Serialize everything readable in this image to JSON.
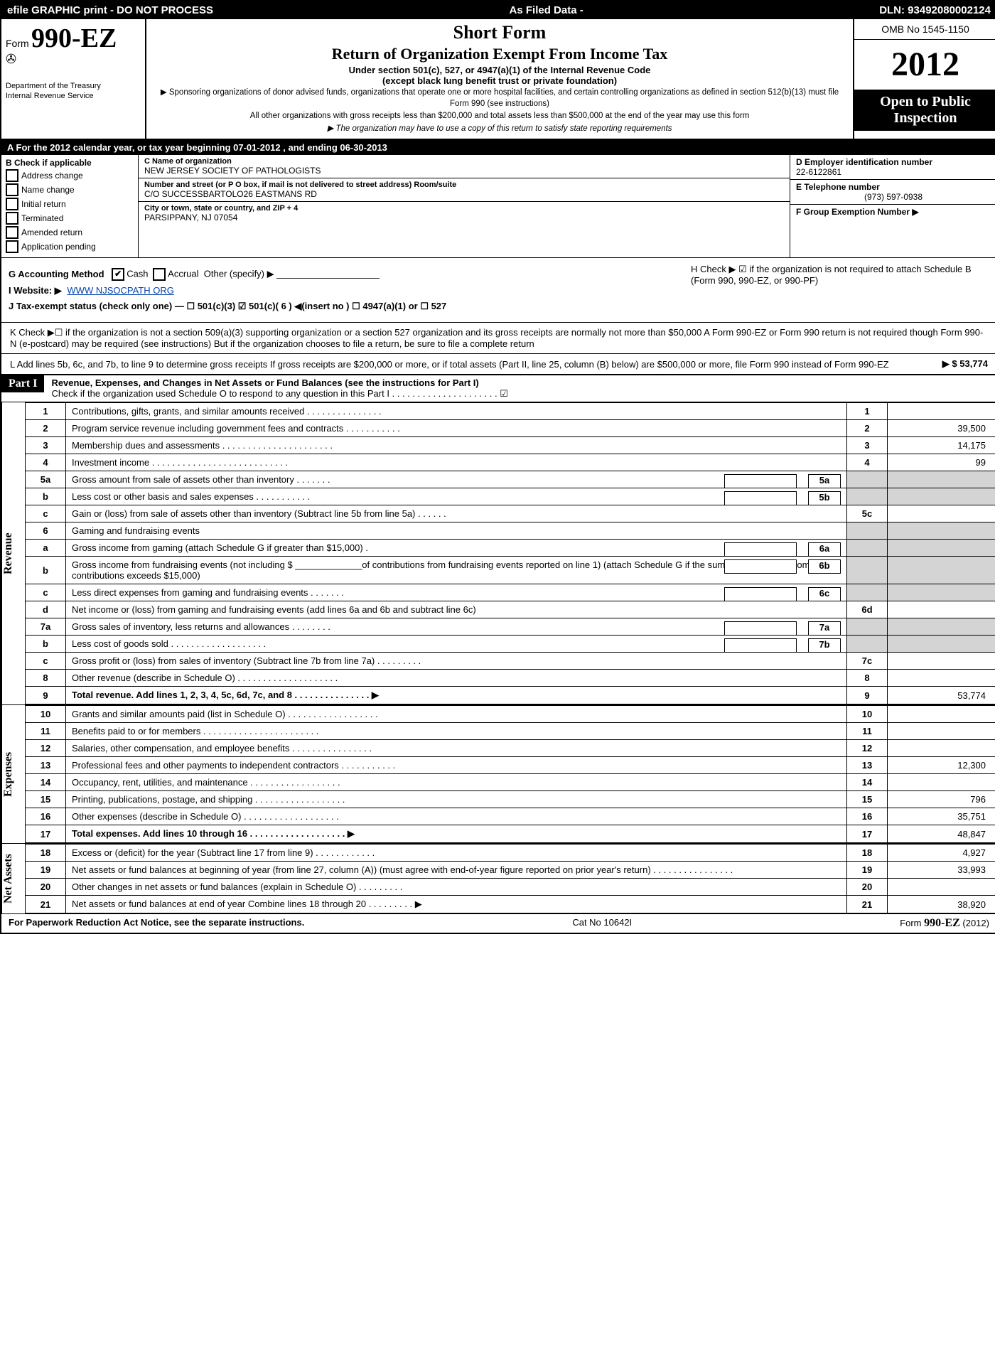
{
  "top_bar": {
    "left": "efile GRAPHIC print - DO NOT PROCESS",
    "mid": "As Filed Data -",
    "right": "DLN: 93492080002124"
  },
  "header": {
    "form_prefix": "Form",
    "form_number": "990-EZ",
    "treasury_1": "Department of the Treasury",
    "treasury_2": "Internal Revenue Service",
    "title_short": "Short Form",
    "title_main": "Return of Organization Exempt From Income Tax",
    "subtitle_1": "Under section 501(c), 527, or 4947(a)(1) of the Internal Revenue Code",
    "subtitle_2": "(except black lung benefit trust or private foundation)",
    "note_1": "▶ Sponsoring organizations of donor advised funds, organizations that operate one or more hospital facilities, and certain controlling organizations as defined in section 512(b)(13) must file Form 990 (see instructions)",
    "note_2": "All other organizations with gross receipts less than $200,000 and total assets less than $500,000 at the end of the year may use this form",
    "note_3": "▶ The organization may have to use a copy of this return to satisfy state reporting requirements",
    "omb": "OMB No 1545-1150",
    "year": "2012",
    "open_public": "Open to Public Inspection"
  },
  "row_a": "A  For the 2012 calendar year, or tax year beginning 07-01-2012            , and ending 06-30-2013",
  "section_b": {
    "label": "B  Check if applicable",
    "items": [
      "Address change",
      "Name change",
      "Initial return",
      "Terminated",
      "Amended return",
      "Application pending"
    ]
  },
  "section_c": {
    "name_lbl": "C Name of organization",
    "name": "NEW JERSEY SOCIETY OF PATHOLOGISTS",
    "addr_lbl": "Number and street (or P  O  box, if mail is not delivered to street address) Room/suite",
    "addr": "C/O SUCCESSBARTOLO26 EASTMANS RD",
    "city_lbl": "City or town, state or country, and ZIP + 4",
    "city": "PARSIPPANY, NJ  07054"
  },
  "section_d": {
    "ein_lbl": "D Employer identification number",
    "ein": "22-6122861",
    "phone_lbl": "E Telephone number",
    "phone": "(973) 597-0938",
    "group_lbl": "F Group Exemption Number   ▶"
  },
  "ghij": {
    "g": "G Accounting Method",
    "g_opts": [
      "Cash",
      "Accrual",
      "Other (specify) ▶"
    ],
    "h": "H  Check ▶  ☑  if the organization is not required to attach Schedule B (Form 990, 990-EZ, or 990-PF)",
    "i": "I Website: ▶",
    "i_url": "WWW NJSOCPATH ORG",
    "j": "J Tax-exempt status (check only one) —  ☐ 501(c)(3)  ☑ 501(c)( 6 ) ◀(insert no )  ☐ 4947(a)(1) or  ☐ 527"
  },
  "k_note": "K Check ▶☐  if the organization is not a section 509(a)(3) supporting organization or a section 527 organization and its gross receipts are normally not more than $50,000  A Form 990-EZ or Form 990 return is not required though Form 990-N (e-postcard) may be required (see instructions)  But if the organization chooses to file a return, be sure to file a complete return",
  "l_note": "L Add lines 5b, 6c, and 7b, to line 9 to determine gross receipts  If gross receipts are $200,000 or more, or if total assets (Part II, line 25, column (B) below) are $500,000 or more, file Form 990 instead of Form 990-EZ",
  "l_amount": "▶ $ 53,774",
  "part1": {
    "label": "Part I",
    "title": "Revenue, Expenses, and Changes in Net Assets or Fund Balances (see the instructions for Part I)",
    "sub": "Check if the organization used Schedule O to respond to any question in this Part I  .  .  .  .  .  .  .  .  .  .  .  .  .  .  .  .  .  .  .  .  .  ☑"
  },
  "revenue_rows": [
    {
      "n": "1",
      "desc": "Contributions, gifts, grants, and similar amounts received    .  .  .  .  .  .  .  .  .  .  .  .  .  .  .",
      "code": "1",
      "val": ""
    },
    {
      "n": "2",
      "desc": "Program service revenue including government fees and contracts    .  .  .  .  .  .  .  .  .  .  .",
      "code": "2",
      "val": "39,500"
    },
    {
      "n": "3",
      "desc": "Membership dues and assessments    .  .  .  .  .  .  .  .  .  .  .  .  .  .  .  .  .  .  .  .  .  .",
      "code": "3",
      "val": "14,175"
    },
    {
      "n": "4",
      "desc": "Investment income    .  .  .  .  .  .  .  .  .  .  .  .  .  .  .  .  .  .  .  .  .  .  .  .  .  .  .",
      "code": "4",
      "val": "99"
    },
    {
      "n": "5a",
      "desc": "Gross amount from sale of assets other than inventory    .  .  .  .  .  .  .",
      "inline_code": "5a"
    },
    {
      "n": "b",
      "desc": "Less  cost or other basis and sales expenses        .  .  .  .  .  .  .  .  .  .  .",
      "inline_code": "5b"
    },
    {
      "n": "c",
      "desc": "Gain or (loss) from sale of assets other than inventory (Subtract line 5b from line 5a)    .  .  .  .  .  .",
      "code": "5c",
      "val": ""
    },
    {
      "n": "6",
      "desc": "Gaming and fundraising events",
      "no_right": true
    },
    {
      "n": "a",
      "desc": "Gross income from gaming (attach Schedule G if greater than $15,000)            .",
      "inline_code": "6a"
    },
    {
      "n": "b",
      "desc": "Gross income from fundraising events (not including $ _____________of contributions from fundraising events reported on line 1) (attach Schedule G if the sum of such gross income and contributions exceeds $15,000)",
      "inline_code": "6b"
    },
    {
      "n": "c",
      "desc": "Less  direct expenses from gaming and fundraising events    .  .  .  .  .  .  .",
      "inline_code": "6c"
    },
    {
      "n": "d",
      "desc": "Net income or (loss) from gaming and fundraising events (add lines 6a and 6b and subtract line 6c)",
      "code": "6d",
      "val": ""
    },
    {
      "n": "7a",
      "desc": "Gross sales of inventory, less returns and allowances        .  .  .  .  .  .  .  .",
      "inline_code": "7a"
    },
    {
      "n": "b",
      "desc": "Less  cost of goods sold         .  .  .  .  .  .  .  .  .  .  .  .  .  .  .  .  .  .  .",
      "inline_code": "7b"
    },
    {
      "n": "c",
      "desc": "Gross profit or (loss) from sales of inventory (Subtract line 7b from line 7a)    .  .  .  .  .  .  .  .  .",
      "code": "7c",
      "val": ""
    },
    {
      "n": "8",
      "desc": "Other revenue (describe in Schedule O)    .  .  .  .  .  .  .  .  .  .  .  .  .  .  .  .  .  .  .  .",
      "code": "8",
      "val": ""
    },
    {
      "n": "9",
      "desc": "Total revenue. Add lines 1, 2, 3, 4, 5c, 6d, 7c, and 8    .  .  .  .  .  .  .  .  .  .  .  .  .  .  .    ▶",
      "code": "9",
      "val": "53,774",
      "bold": true
    }
  ],
  "expense_rows": [
    {
      "n": "10",
      "desc": "Grants and similar amounts paid (list in Schedule O)   .  .  .  .  .  .  .  .  .  .  .  .  .  .  .  .  .  .",
      "code": "10",
      "val": ""
    },
    {
      "n": "11",
      "desc": "Benefits paid to or for members    .  .  .  .  .  .  .  .  .  .  .  .  .  .  .  .  .  .  .  .  .  .  .",
      "code": "11",
      "val": ""
    },
    {
      "n": "12",
      "desc": "Salaries, other compensation, and employee benefits      .  .  .  .  .  .  .  .  .  .  .  .  .  .  .  .",
      "code": "12",
      "val": ""
    },
    {
      "n": "13",
      "desc": "Professional fees and other payments to independent contractors      .  .  .  .  .  .  .  .  .  .  .",
      "code": "13",
      "val": "12,300"
    },
    {
      "n": "14",
      "desc": "Occupancy, rent, utilities, and maintenance      .  .  .  .  .  .  .  .  .  .  .  .  .  .  .  .  .  .",
      "code": "14",
      "val": ""
    },
    {
      "n": "15",
      "desc": "Printing, publications, postage, and shipping    .  .  .  .  .  .  .  .  .  .  .  .  .  .  .  .  .  .",
      "code": "15",
      "val": "796"
    },
    {
      "n": "16",
      "desc": "Other expenses (describe in Schedule O)    .  .  .  .  .  .  .  .  .  .  .  .  .  .  .  .  .  .  .",
      "code": "16",
      "val": "35,751"
    },
    {
      "n": "17",
      "desc": "Total expenses. Add lines 10 through 16    .  .  .  .  .  .  .  .  .  .  .  .  .  .  .  .  .  .  .    ▶",
      "code": "17",
      "val": "48,847",
      "bold": true
    }
  ],
  "netassets_rows": [
    {
      "n": "18",
      "desc": "Excess or (deficit) for the year (Subtract line 17 from line 9)           .  .  .  .  .  .  .  .  .  .  .  .",
      "code": "18",
      "val": "4,927"
    },
    {
      "n": "19",
      "desc": "Net assets or fund balances at beginning of year (from line 27, column (A)) (must agree with end-of-year figure reported on prior year's return)        .  .  .  .  .  .  .  .  .  .  .  .  .  .  .  .",
      "code": "19",
      "val": "33,993"
    },
    {
      "n": "20",
      "desc": "Other changes in net assets or fund balances (explain in Schedule O)     .  .  .  .  .  .  .  .  .",
      "code": "20",
      "val": ""
    },
    {
      "n": "21",
      "desc": "Net assets or fund balances at end of year  Combine lines 18 through 20    .  .  .  .  .  .  .  .  . ▶",
      "code": "21",
      "val": "38,920"
    }
  ],
  "side_labels": {
    "rev": "Revenue",
    "exp": "Expenses",
    "net": "Net Assets"
  },
  "footer": {
    "left": "For Paperwork Reduction Act Notice, see the separate instructions.",
    "mid": "Cat No  10642I",
    "right": "Form 990-EZ (2012)"
  }
}
